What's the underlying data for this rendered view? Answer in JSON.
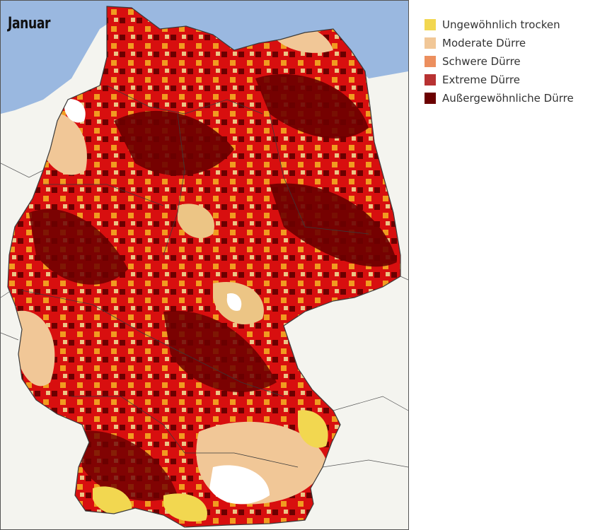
{
  "map": {
    "title": "Januar",
    "colors": {
      "sea": "#9ab8e0",
      "neighbor_land": "#f4f4ef",
      "border": "#3a3a3a",
      "no_drought": "#ffffff"
    }
  },
  "legend": {
    "items": [
      {
        "label": "Ungewöhnlich trocken",
        "color": "#f2d750"
      },
      {
        "label": "Moderate Dürre",
        "color": "#f1c797"
      },
      {
        "label": "Schwere Dürre",
        "color": "#ec8f5e"
      },
      {
        "label": "Extreme Dürre",
        "color": "#b83232"
      },
      {
        "label": "Außergewöhnliche Dürre",
        "color": "#6b0000"
      }
    ]
  }
}
